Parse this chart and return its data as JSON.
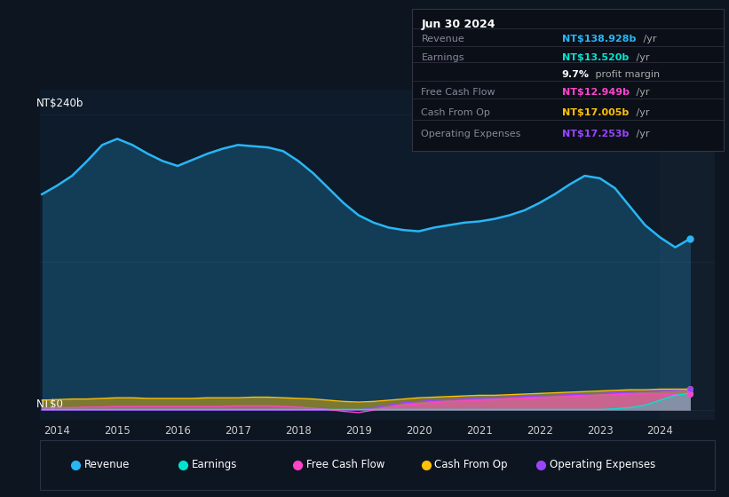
{
  "background_color": "#0d1520",
  "plot_bg_color": "#0d1b2a",
  "right_panel_color": "#131e2d",
  "ylabel_top": "NT$240b",
  "ylabel_bottom": "NT$0",
  "x_ticks": [
    2014,
    2015,
    2016,
    2017,
    2018,
    2019,
    2020,
    2021,
    2022,
    2023,
    2024
  ],
  "ylim_min": -8,
  "ylim_max": 260,
  "y_display_max": 240,
  "colors": {
    "revenue": "#29b6f6",
    "earnings": "#00e5d0",
    "free_cash_flow": "#ff44cc",
    "cash_from_op": "#ffc107",
    "operating_expenses": "#9b44ff"
  },
  "grid_color": "#1e2e40",
  "info_box_bg": "#0a0f18",
  "info_box_border": "#333344",
  "info_box": {
    "date": "Jun 30 2024",
    "rows": [
      {
        "label": "Revenue",
        "value": "NT$138.928b",
        "suffix": " /yr",
        "color": "#29b6f6"
      },
      {
        "label": "Earnings",
        "value": "NT$13.520b",
        "suffix": " /yr",
        "color": "#00e5d0"
      },
      {
        "label": "",
        "value": "9.7%",
        "suffix": " profit margin",
        "color": "white",
        "suffix_color": "#aaaaaa"
      },
      {
        "label": "Free Cash Flow",
        "value": "NT$12.949b",
        "suffix": " /yr",
        "color": "#ff44cc"
      },
      {
        "label": "Cash From Op",
        "value": "NT$17.005b",
        "suffix": " /yr",
        "color": "#ffc107"
      },
      {
        "label": "Operating Expenses",
        "value": "NT$17.253b",
        "suffix": " /yr",
        "color": "#9b44ff"
      }
    ]
  },
  "legend": [
    {
      "label": "Revenue",
      "color": "#29b6f6"
    },
    {
      "label": "Earnings",
      "color": "#00e5d0"
    },
    {
      "label": "Free Cash Flow",
      "color": "#ff44cc"
    },
    {
      "label": "Cash From Op",
      "color": "#ffc107"
    },
    {
      "label": "Operating Expenses",
      "color": "#9b44ff"
    }
  ]
}
